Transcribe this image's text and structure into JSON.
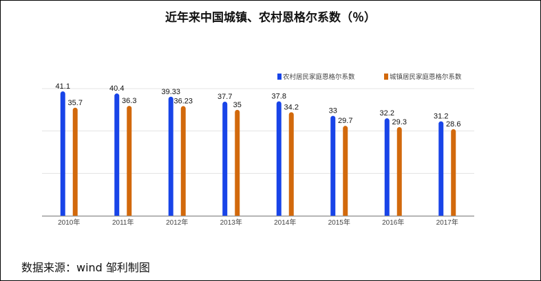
{
  "chart_data": {
    "type": "bar",
    "title": "近年来中国城镇、农村恩格尔系数（％）",
    "categories": [
      "2010年",
      "2011年",
      "2012年",
      "2013年",
      "2014年",
      "2015年",
      "2016年",
      "2017年"
    ],
    "series": [
      {
        "name": "农村居民家庭恩格尔系数",
        "color": "#1844e8",
        "values": [
          41.1,
          40.4,
          39.33,
          37.7,
          37.8,
          33,
          32.2,
          31.2
        ]
      },
      {
        "name": "城镇居民家庭恩格尔系数",
        "color": "#d2690c",
        "values": [
          35.7,
          36.3,
          36.23,
          35,
          34.2,
          29.7,
          29.3,
          28.6
        ]
      }
    ],
    "ylim": [
      0,
      42
    ],
    "gridlines": [
      14,
      28,
      42
    ],
    "grid": true,
    "y_tick_labels_shown": false,
    "legend_placement": "top-right",
    "xlabel": "",
    "ylabel": ""
  },
  "source": "数据来源：wind 邹利制图"
}
